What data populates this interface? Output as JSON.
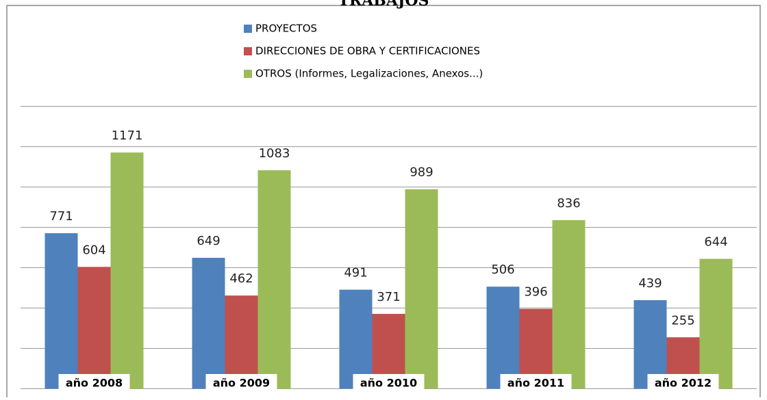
{
  "chart_data": {
    "type": "bar",
    "title": "TRABAJOS",
    "categories": [
      "año 2008",
      "año 2009",
      "año 2010",
      "año 2011",
      "año 2012"
    ],
    "series": [
      {
        "name": "PROYECTOS",
        "color": "#4f81bd",
        "values": [
          771,
          649,
          491,
          506,
          439
        ]
      },
      {
        "name": "DIRECCIONES DE OBRA Y CERTIFICACIONES",
        "color": "#c0504d",
        "values": [
          604,
          462,
          371,
          396,
          255
        ]
      },
      {
        "name": "OTROS (Informes, Legalizaciones, Anexos...)",
        "color": "#9bbb59",
        "values": [
          1171,
          1083,
          989,
          836,
          644
        ]
      }
    ],
    "ylim": [
      0,
      1400
    ],
    "yticks": [
      0,
      200,
      400,
      600,
      800,
      1000,
      1200,
      1400
    ],
    "grid": true,
    "legend": "top"
  }
}
